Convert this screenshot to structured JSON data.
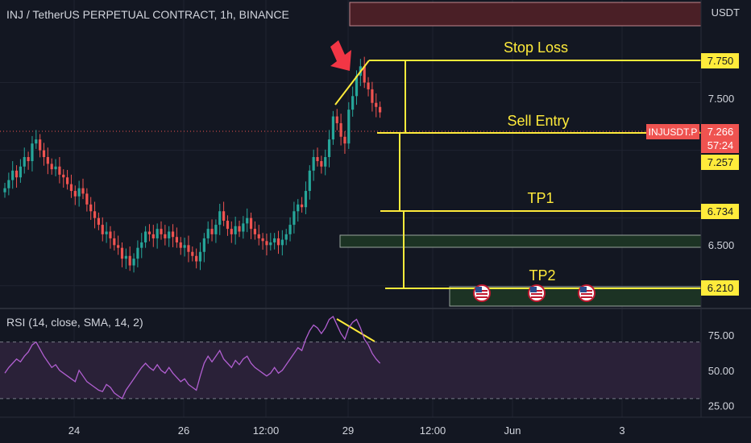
{
  "header": {
    "symbol_title": "INJ / TetherUS PERPETUAL CONTRACT, 1h, BINANCE",
    "currency": "USDT"
  },
  "rsi_legend": "RSI (14, close, SMA, 14, 2)",
  "annotations": {
    "stop_loss": "Stop Loss",
    "sell_entry": "Sell Entry",
    "tp1": "TP1",
    "tp2": "TP2"
  },
  "price_labels": {
    "stop_loss": "7.750",
    "ticker": "INJUSDT.P",
    "last_price": "7.266",
    "countdown": "57:24",
    "entry": "7.257",
    "tp1": "6.734",
    "tp2": "6.210",
    "tick_7500": "7.500",
    "tick_6500": "6.500"
  },
  "colors": {
    "background": "#131722",
    "up": "#26a69a",
    "down": "#ef5350",
    "annotation": "#ffeb3b",
    "rsi_line": "#b15fd1",
    "arrow": "#f23645"
  },
  "chart_data": [
    {
      "type": "candlestick",
      "title": "INJ / TetherUS PERPETUAL CONTRACT, 1h, BINANCE",
      "ylabel": "USDT",
      "ylim": [
        5.85,
        8.05
      ],
      "x_ticks": [
        "24",
        "26",
        "12:00",
        "29",
        "12:00",
        "Jun",
        "3"
      ],
      "y_ticks": [
        6.5,
        7.5
      ],
      "close_series": [
        6.72,
        6.78,
        6.85,
        6.8,
        6.88,
        6.95,
        6.92,
        7.05,
        7.08,
        7.0,
        6.95,
        6.9,
        6.86,
        6.88,
        6.82,
        6.8,
        6.75,
        6.7,
        6.66,
        6.72,
        6.68,
        6.6,
        6.55,
        6.5,
        6.45,
        6.38,
        6.4,
        6.35,
        6.3,
        6.28,
        6.2,
        6.22,
        6.15,
        6.2,
        6.28,
        6.32,
        6.4,
        6.38,
        6.35,
        6.42,
        6.38,
        6.35,
        6.4,
        6.36,
        6.32,
        6.28,
        6.3,
        6.25,
        6.22,
        6.18,
        6.25,
        6.35,
        6.42,
        6.38,
        6.45,
        6.55,
        6.48,
        6.42,
        6.38,
        6.44,
        6.4,
        6.46,
        6.5,
        6.42,
        6.38,
        6.35,
        6.33,
        6.3,
        6.32,
        6.35,
        6.3,
        6.34,
        6.38,
        6.45,
        6.55,
        6.6,
        6.58,
        6.7,
        6.85,
        6.95,
        6.92,
        6.88,
        6.95,
        7.08,
        7.25,
        7.2,
        7.1,
        7.05,
        7.3,
        7.4,
        7.55,
        7.62,
        7.5,
        7.45,
        7.35,
        7.32,
        7.28
      ],
      "levels": [
        {
          "label": "Stop Loss",
          "value": 7.75
        },
        {
          "label": "Sell Entry",
          "value": 7.257
        },
        {
          "label": "TP1",
          "value": 6.734
        },
        {
          "label": "TP2",
          "value": 6.21
        }
      ],
      "last_price": 7.266
    },
    {
      "type": "line",
      "title": "RSI (14, close, SMA, 14, 2)",
      "ylim": [
        18,
        92
      ],
      "y_ticks": [
        25,
        50,
        75
      ],
      "bands": [
        30,
        70
      ],
      "values": [
        48,
        52,
        55,
        58,
        56,
        60,
        63,
        68,
        70,
        65,
        60,
        56,
        52,
        54,
        50,
        48,
        46,
        44,
        42,
        50,
        46,
        42,
        40,
        38,
        36,
        35,
        40,
        38,
        34,
        32,
        30,
        36,
        40,
        44,
        48,
        52,
        55,
        52,
        50,
        54,
        50,
        48,
        52,
        48,
        45,
        42,
        44,
        40,
        38,
        36,
        46,
        55,
        60,
        56,
        60,
        64,
        58,
        55,
        52,
        57,
        54,
        58,
        60,
        55,
        52,
        50,
        48,
        46,
        48,
        52,
        48,
        50,
        54,
        58,
        62,
        66,
        64,
        72,
        78,
        82,
        80,
        76,
        80,
        86,
        88,
        82,
        76,
        72,
        80,
        84,
        86,
        80,
        72,
        68,
        62,
        58,
        55
      ]
    }
  ]
}
